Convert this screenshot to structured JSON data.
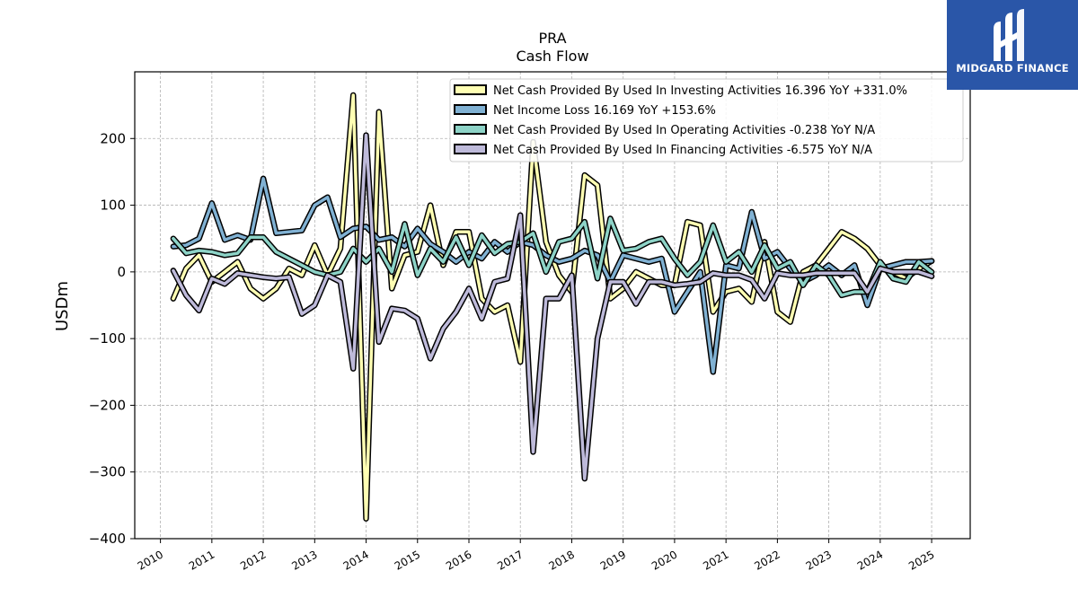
{
  "chart_data": {
    "type": "line",
    "title": "PRA",
    "subtitle": "Cash Flow",
    "ylabel": "USDm",
    "xlabel": "",
    "ylim": [
      -400,
      300
    ],
    "xlim": [
      2009.5,
      2025.75
    ],
    "yticks": [
      -400,
      -300,
      -200,
      -100,
      0,
      100,
      200
    ],
    "ytick_labels": [
      "−400",
      "−300",
      "−200",
      "−100",
      "0",
      "100",
      "200"
    ],
    "xticks": [
      2010,
      2011,
      2012,
      2013,
      2014,
      2015,
      2016,
      2017,
      2018,
      2019,
      2020,
      2021,
      2022,
      2023,
      2024,
      2025
    ],
    "xtick_labels": [
      "2010",
      "2011",
      "2012",
      "2013",
      "2014",
      "2015",
      "2016",
      "2017",
      "2018",
      "2019",
      "2020",
      "2021",
      "2022",
      "2023",
      "2024",
      "2025"
    ],
    "grid": true,
    "legend_position": "top-right",
    "series": [
      {
        "name": "Net Cash Provided By Used In Investing Activities",
        "legend": "Net Cash Provided By Used In Investing Activities  16.396 YoY +331.0%",
        "color": "#ffffb3",
        "x": [
          2010.25,
          2010.5,
          2010.75,
          2011.0,
          2011.25,
          2011.5,
          2011.75,
          2012.0,
          2012.25,
          2012.5,
          2012.75,
          2013.0,
          2013.25,
          2013.5,
          2013.75,
          2014.0,
          2014.25,
          2014.5,
          2014.75,
          2015.0,
          2015.25,
          2015.5,
          2015.75,
          2016.0,
          2016.25,
          2016.5,
          2016.75,
          2017.0,
          2017.25,
          2017.5,
          2017.75,
          2018.0,
          2018.25,
          2018.5,
          2018.75,
          2019.0,
          2019.25,
          2019.5,
          2019.75,
          2020.0,
          2020.25,
          2020.5,
          2020.75,
          2021.0,
          2021.25,
          2021.5,
          2021.75,
          2022.0,
          2022.25,
          2022.5,
          2022.75,
          2023.0,
          2023.25,
          2023.5,
          2023.75,
          2024.0,
          2024.25,
          2024.5,
          2024.75,
          2025.0
        ],
        "values": [
          -40,
          5,
          25,
          -15,
          0,
          15,
          -25,
          -40,
          -25,
          5,
          -5,
          40,
          -5,
          35,
          265,
          -370,
          240,
          -25,
          25,
          30,
          100,
          10,
          60,
          60,
          -40,
          -60,
          -50,
          -135,
          195,
          45,
          -5,
          -30,
          145,
          130,
          -40,
          -25,
          0,
          -10,
          -20,
          -20,
          75,
          70,
          -60,
          -30,
          -25,
          -45,
          45,
          -60,
          -75,
          0,
          10,
          35,
          60,
          50,
          35,
          10,
          0,
          -10,
          5,
          16.396
        ]
      },
      {
        "name": "Net Income Loss",
        "legend": "Net Income Loss  16.169 YoY +153.6%",
        "color": "#80b1d3",
        "x": [
          2010.25,
          2010.5,
          2010.75,
          2011.0,
          2011.25,
          2011.5,
          2011.75,
          2012.0,
          2012.25,
          2012.5,
          2012.75,
          2013.0,
          2013.25,
          2013.5,
          2013.75,
          2014.0,
          2014.25,
          2014.5,
          2014.75,
          2015.0,
          2015.25,
          2015.5,
          2015.75,
          2016.0,
          2016.25,
          2016.5,
          2016.75,
          2017.0,
          2017.25,
          2017.5,
          2017.75,
          2018.0,
          2018.25,
          2018.5,
          2018.75,
          2019.0,
          2019.25,
          2019.5,
          2019.75,
          2020.0,
          2020.25,
          2020.5,
          2020.75,
          2021.0,
          2021.25,
          2021.5,
          2021.75,
          2022.0,
          2022.25,
          2022.5,
          2022.75,
          2023.0,
          2023.25,
          2023.5,
          2023.75,
          2024.0,
          2024.25,
          2024.5,
          2024.75,
          2025.0
        ],
        "values": [
          38,
          40,
          50,
          103,
          48,
          55,
          48,
          140,
          58,
          60,
          62,
          100,
          112,
          52,
          65,
          68,
          48,
          52,
          38,
          65,
          42,
          30,
          15,
          30,
          20,
          45,
          30,
          45,
          40,
          25,
          15,
          20,
          32,
          25,
          -15,
          25,
          20,
          15,
          20,
          -60,
          -30,
          0,
          -150,
          10,
          5,
          90,
          20,
          30,
          5,
          -15,
          -5,
          10,
          -5,
          10,
          -50,
          5,
          10,
          15,
          15,
          16.169
        ]
      },
      {
        "name": "Net Cash Provided By Used In Operating Activities",
        "legend": "Net Cash Provided By Used In Operating Activities  -0.238 YoY N/A",
        "color": "#8dd3c7",
        "x": [
          2010.25,
          2010.5,
          2010.75,
          2011.0,
          2011.25,
          2011.5,
          2011.75,
          2012.0,
          2012.25,
          2012.5,
          2012.75,
          2013.0,
          2013.25,
          2013.5,
          2013.75,
          2014.0,
          2014.25,
          2014.5,
          2014.75,
          2015.0,
          2015.25,
          2015.5,
          2015.75,
          2016.0,
          2016.25,
          2016.5,
          2016.75,
          2017.0,
          2017.25,
          2017.5,
          2017.75,
          2018.0,
          2018.25,
          2018.5,
          2018.75,
          2019.0,
          2019.25,
          2019.5,
          2019.75,
          2020.0,
          2020.25,
          2020.5,
          2020.75,
          2021.0,
          2021.25,
          2021.5,
          2021.75,
          2022.0,
          2022.25,
          2022.5,
          2022.75,
          2023.0,
          2023.25,
          2023.5,
          2023.75,
          2024.0,
          2024.25,
          2024.5,
          2024.75,
          2025.0
        ],
        "values": [
          50,
          28,
          32,
          30,
          25,
          28,
          52,
          52,
          30,
          20,
          10,
          0,
          -5,
          0,
          35,
          15,
          35,
          0,
          72,
          -5,
          35,
          15,
          52,
          10,
          55,
          28,
          42,
          45,
          58,
          0,
          45,
          50,
          75,
          -10,
          80,
          32,
          35,
          45,
          50,
          20,
          -5,
          15,
          70,
          15,
          30,
          0,
          40,
          5,
          15,
          -20,
          10,
          -5,
          -35,
          -30,
          -30,
          15,
          -10,
          -15,
          15,
          -0.238
        ]
      },
      {
        "name": "Net Cash Provided By Used In Financing Activities",
        "legend": "Net Cash Provided By Used In Financing Activities  -6.575 YoY N/A",
        "color": "#bebada",
        "x": [
          2010.25,
          2010.5,
          2010.75,
          2011.0,
          2011.25,
          2011.5,
          2011.75,
          2012.0,
          2012.25,
          2012.5,
          2012.75,
          2013.0,
          2013.25,
          2013.5,
          2013.75,
          2014.0,
          2014.25,
          2014.5,
          2014.75,
          2015.0,
          2015.25,
          2015.5,
          2015.75,
          2016.0,
          2016.25,
          2016.5,
          2016.75,
          2017.0,
          2017.25,
          2017.5,
          2017.75,
          2018.0,
          2018.25,
          2018.5,
          2018.75,
          2019.0,
          2019.25,
          2019.5,
          2019.75,
          2020.0,
          2020.25,
          2020.5,
          2020.75,
          2021.0,
          2021.25,
          2021.5,
          2021.75,
          2022.0,
          2022.25,
          2022.5,
          2022.75,
          2023.0,
          2023.25,
          2023.5,
          2023.75,
          2024.0,
          2024.25,
          2024.5,
          2024.75,
          2025.0
        ],
        "values": [
          2,
          -35,
          -58,
          -10,
          -18,
          -2,
          -5,
          -8,
          -10,
          -8,
          -63,
          -50,
          -5,
          -15,
          -145,
          205,
          -105,
          -55,
          -58,
          -70,
          -130,
          -85,
          -60,
          -25,
          -70,
          -15,
          -10,
          85,
          -270,
          -40,
          -40,
          -5,
          -310,
          -100,
          -15,
          -15,
          -48,
          -15,
          -15,
          -20,
          -18,
          -15,
          -2,
          -5,
          -5,
          -12,
          -40,
          -2,
          -5,
          -5,
          -2,
          -2,
          -2,
          -2,
          -30,
          5,
          0,
          0,
          0,
          -6.575
        ]
      }
    ]
  },
  "logo": {
    "text": "MIDGARD FINANCE",
    "background": "#2a56a8"
  }
}
